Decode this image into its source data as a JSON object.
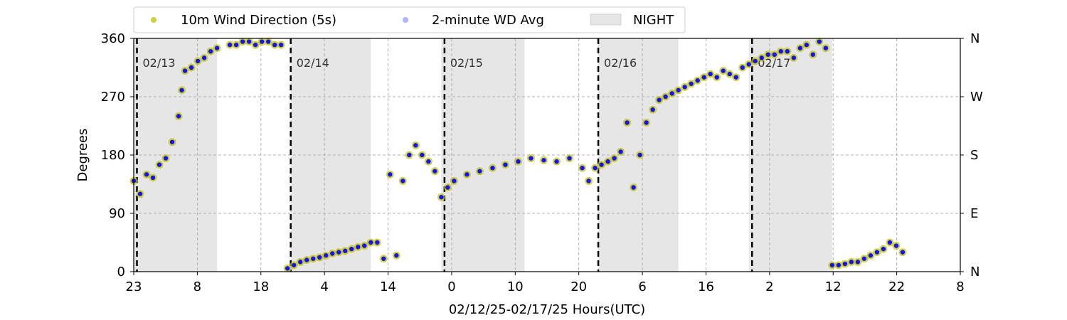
{
  "chart_data": {
    "type": "scatter",
    "xlabel": "02/12/25-02/17/25  Hours(UTC)",
    "ylabel": "Degrees",
    "ylim": [
      0,
      360
    ],
    "yticks": [
      0,
      90,
      180,
      270,
      360
    ],
    "right_axis_labels": [
      "N",
      "E",
      "S",
      "W",
      "N"
    ],
    "x_start_hour": 23,
    "xlim_hours": [
      0,
      129
    ],
    "x_tick_labels": [
      "23",
      "8",
      "18",
      "4",
      "14",
      "0",
      "10",
      "20",
      "6",
      "16",
      "2",
      "12",
      "22",
      "8"
    ],
    "grid": true,
    "legend": {
      "position": "top",
      "entries": [
        {
          "label": "10m Wind Direction (5s)",
          "color": "#bfbf00",
          "marker": "dot"
        },
        {
          "label": "2-minute WD Avg",
          "color": "#0000ff",
          "marker": "dot"
        },
        {
          "label": "NIGHT",
          "color": "#e6e6e6",
          "marker": "patch"
        }
      ]
    },
    "night_spans_hours": [
      [
        0,
        13
      ],
      [
        24.5,
        37
      ],
      [
        48,
        61
      ],
      [
        72.5,
        85
      ],
      [
        96,
        109
      ]
    ],
    "day_markers": [
      {
        "hour": 0.5,
        "label": "02/13"
      },
      {
        "hour": 24.5,
        "label": "02/14"
      },
      {
        "hour": 48.5,
        "label": "02/15"
      },
      {
        "hour": 72.5,
        "label": "02/16"
      },
      {
        "hour": 96.5,
        "label": "02/17"
      }
    ],
    "series": [
      {
        "name": "10m Wind Direction (5s)",
        "color": "#bfbf00",
        "x": [
          0,
          1,
          2,
          3,
          4,
          5,
          6,
          7,
          7.5,
          8,
          9,
          10,
          11,
          12,
          13,
          15,
          16,
          17,
          18,
          19,
          20,
          21,
          22,
          23,
          24,
          25,
          26,
          27,
          28,
          29,
          30,
          31,
          32,
          33,
          34,
          35,
          36,
          37,
          38,
          39,
          40,
          41,
          42,
          43,
          44,
          45,
          46,
          47,
          48,
          49,
          50,
          52,
          54,
          56,
          58,
          60,
          62,
          64,
          66,
          68,
          70,
          71,
          72,
          73,
          74,
          75,
          76,
          77,
          78,
          79,
          80,
          81,
          82,
          83,
          84,
          85,
          86,
          87,
          88,
          89,
          90,
          91,
          92,
          93,
          94,
          95,
          96,
          97,
          98,
          99,
          100,
          101,
          102,
          103,
          104,
          105,
          106,
          107,
          108,
          109,
          110,
          111,
          112,
          113,
          114,
          115,
          116,
          117,
          118,
          119,
          120
        ],
        "values": [
          140,
          120,
          150,
          145,
          165,
          175,
          200,
          240,
          280,
          310,
          315,
          325,
          330,
          340,
          345,
          350,
          350,
          355,
          355,
          350,
          355,
          355,
          350,
          350,
          5,
          10,
          15,
          18,
          20,
          22,
          25,
          28,
          30,
          32,
          35,
          38,
          40,
          45,
          45,
          20,
          150,
          25,
          140,
          180,
          195,
          180,
          170,
          155,
          115,
          130,
          140,
          150,
          155,
          160,
          165,
          170,
          175,
          172,
          170,
          175,
          160,
          140,
          160,
          165,
          170,
          175,
          185,
          230,
          130,
          180,
          230,
          250,
          265,
          270,
          275,
          280,
          285,
          290,
          295,
          300,
          305,
          300,
          310,
          305,
          300,
          315,
          320,
          325,
          330,
          335,
          335,
          340,
          340,
          330,
          345,
          350,
          335,
          355,
          345,
          10,
          10,
          12,
          15,
          15,
          20,
          25,
          30,
          35,
          45,
          40,
          30
        ]
      },
      {
        "name": "2-minute WD Avg",
        "color": "#0000ff",
        "x": [
          0,
          1,
          2,
          3,
          4,
          5,
          6,
          7,
          7.5,
          8,
          9,
          10,
          11,
          12,
          13,
          15,
          16,
          17,
          18,
          19,
          20,
          21,
          22,
          23,
          24,
          25,
          26,
          27,
          28,
          29,
          30,
          31,
          32,
          33,
          34,
          35,
          36,
          37,
          38,
          39,
          40,
          41,
          42,
          43,
          44,
          45,
          46,
          47,
          48,
          49,
          50,
          52,
          54,
          56,
          58,
          60,
          62,
          64,
          66,
          68,
          70,
          71,
          72,
          73,
          74,
          75,
          76,
          77,
          78,
          79,
          80,
          81,
          82,
          83,
          84,
          85,
          86,
          87,
          88,
          89,
          90,
          91,
          92,
          93,
          94,
          95,
          96,
          97,
          98,
          99,
          100,
          101,
          102,
          103,
          104,
          105,
          106,
          107,
          108,
          109,
          110,
          111,
          112,
          113,
          114,
          115,
          116,
          117,
          118,
          119,
          120
        ],
        "values": [
          140,
          120,
          150,
          145,
          165,
          175,
          200,
          240,
          280,
          310,
          315,
          325,
          330,
          340,
          345,
          350,
          350,
          355,
          355,
          350,
          355,
          355,
          350,
          350,
          5,
          10,
          15,
          18,
          20,
          22,
          25,
          28,
          30,
          32,
          35,
          38,
          40,
          45,
          45,
          20,
          150,
          25,
          140,
          180,
          195,
          180,
          170,
          155,
          115,
          130,
          140,
          150,
          155,
          160,
          165,
          170,
          175,
          172,
          170,
          175,
          160,
          140,
          160,
          165,
          170,
          175,
          185,
          230,
          130,
          180,
          230,
          250,
          265,
          270,
          275,
          280,
          285,
          290,
          295,
          300,
          305,
          300,
          310,
          305,
          300,
          315,
          320,
          325,
          330,
          335,
          335,
          340,
          340,
          330,
          345,
          350,
          335,
          355,
          345,
          10,
          10,
          12,
          15,
          15,
          20,
          25,
          30,
          35,
          45,
          40,
          30
        ]
      }
    ]
  }
}
